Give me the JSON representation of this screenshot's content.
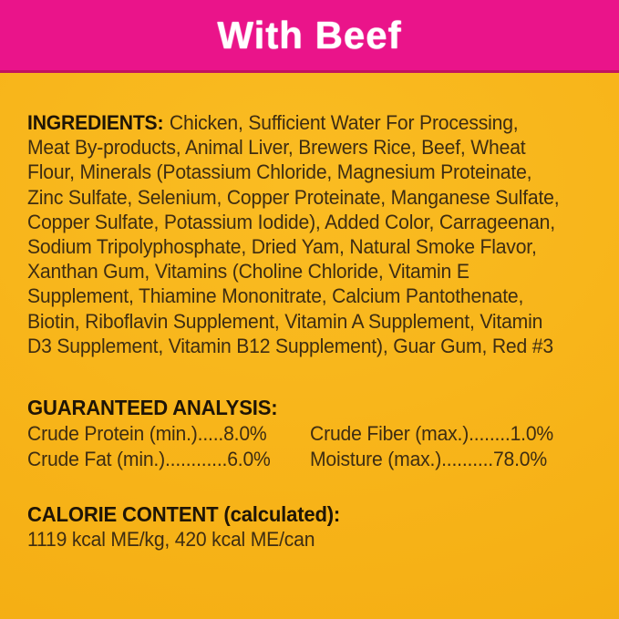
{
  "banner": {
    "title": "With Beef"
  },
  "colors": {
    "banner_bg": "#EA148A",
    "banner_edge": "#C2145F",
    "banner_text": "#FFFFFF",
    "label_bg": "#F7B318",
    "heading_text": "#1F1506",
    "body_text": "#3E2D12"
  },
  "ingredients": {
    "heading": "INGREDIENTS:",
    "lines": [
      "Chicken, Sufficient Water For Processing,",
      "Meat By-products, Animal Liver, Brewers Rice, Beef, Wheat",
      "Flour, Minerals (Potassium Chloride, Magnesium Proteinate,",
      "Zinc Sulfate, Selenium, Copper Proteinate, Manganese Sulfate,",
      "Copper Sulfate, Potassium Iodide), Added Color, Carrageenan,",
      "Sodium Tripolyphosphate, Dried Yam, Natural Smoke Flavor,",
      "Xanthan Gum, Vitamins (Choline Chloride, Vitamin E",
      "Supplement, Thiamine Mononitrate, Calcium Pantothenate,",
      "Biotin, Riboflavin Supplement, Vitamin A Supplement, Vitamin",
      "D3 Supplement, Vitamin B12 Supplement), Guar Gum, Red #3"
    ]
  },
  "guaranteed_analysis": {
    "heading": "GUARANTEED ANALYSIS:",
    "left_column": [
      "Crude Protein (min.).....8.0%",
      "Crude Fat (min.)............6.0%"
    ],
    "right_column": [
      "Crude Fiber (max.)........1.0%",
      "Moisture (max.)..........78.0%"
    ]
  },
  "calorie_content": {
    "heading": "CALORIE CONTENT (calculated):",
    "value": "1119 kcal ME/kg, 420 kcal ME/can"
  }
}
